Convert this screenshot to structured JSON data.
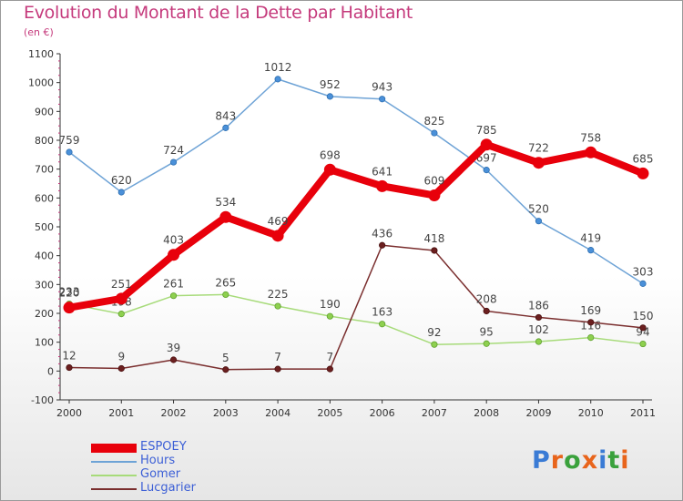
{
  "header": {
    "title": "Evolution du Montant de la Dette par Habitant",
    "subtitle": "(en €)"
  },
  "logo": {
    "text": "Proxiti",
    "letter_colors": [
      "#3a7bd5",
      "#e8641b",
      "#3aa13c",
      "#e8641b",
      "#3a7bd5",
      "#3aa13c",
      "#e8641b"
    ]
  },
  "chart_data": {
    "type": "line",
    "title": "Evolution du Montant de la Dette par Habitant",
    "subtitle": "(en €)",
    "x": [
      "2000",
      "2001",
      "2002",
      "2003",
      "2004",
      "2005",
      "2006",
      "2007",
      "2008",
      "2009",
      "2010",
      "2011"
    ],
    "ylim": [
      -100,
      1100
    ],
    "yticks": [
      "-100",
      "0",
      "100",
      "200",
      "300",
      "400",
      "500",
      "600",
      "700",
      "800",
      "900",
      "1000",
      "1100"
    ],
    "grid": false,
    "legend_position": "bottom-left",
    "series": [
      {
        "name": "ESPOEY",
        "color": "#e8000b",
        "values": [
          220,
          251,
          403,
          534,
          469,
          698,
          641,
          609,
          785,
          722,
          758,
          685
        ],
        "labels": [
          "220",
          "251",
          "403",
          "534",
          "469",
          "698",
          "641",
          "609",
          "785",
          "722",
          "758",
          "685"
        ]
      },
      {
        "name": "Hours",
        "color": "#6ea3d6",
        "values": [
          759,
          620,
          724,
          843,
          1012,
          952,
          943,
          825,
          697,
          520,
          419,
          303
        ],
        "labels": [
          "759",
          "620",
          "724",
          "843",
          "1012",
          "952",
          "943",
          "825",
          "697",
          "520",
          "419",
          "303"
        ]
      },
      {
        "name": "Gomer",
        "color": "#a7db7a",
        "values": [
          233,
          198,
          261,
          265,
          225,
          190,
          163,
          92,
          95,
          102,
          116,
          94
        ],
        "labels": [
          "233",
          "198",
          "261",
          "265",
          "225",
          "190",
          "163",
          "92",
          "95",
          "102",
          "116",
          "94"
        ]
      },
      {
        "name": "Lucgarier",
        "color": "#7a2e2e",
        "values": [
          12,
          9,
          39,
          5,
          7,
          7,
          436,
          418,
          208,
          186,
          169,
          150
        ],
        "labels": [
          "12",
          "9",
          "39",
          "5",
          "7",
          "7",
          "436",
          "418",
          "208",
          "186",
          "169",
          "150"
        ]
      }
    ]
  }
}
